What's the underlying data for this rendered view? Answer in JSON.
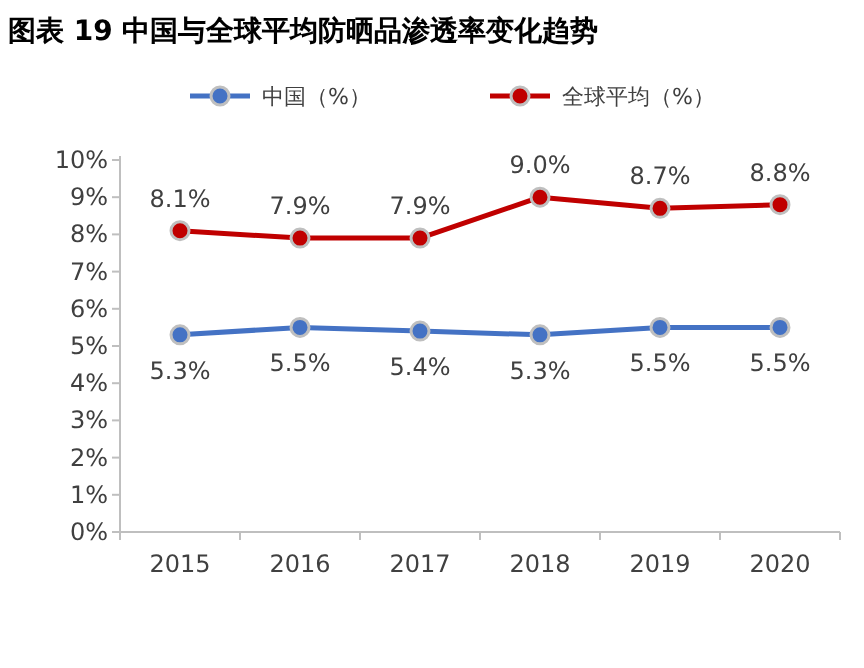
{
  "chart_data": {
    "type": "line",
    "title": "图表 19 中国与全球平均防晒品渗透率变化趋势",
    "categories": [
      "2015",
      "2016",
      "2017",
      "2018",
      "2019",
      "2020"
    ],
    "series": [
      {
        "name": "中国（%）",
        "color": "#4472c4",
        "values": [
          5.3,
          5.5,
          5.4,
          5.3,
          5.5,
          5.5
        ],
        "value_labels": [
          "5.3%",
          "5.5%",
          "5.4%",
          "5.3%",
          "5.5%",
          "5.5%"
        ]
      },
      {
        "name": "全球平均（%）",
        "color": "#c00000",
        "values": [
          8.1,
          7.9,
          7.9,
          9.0,
          8.7,
          8.8
        ],
        "value_labels": [
          "8.1%",
          "7.9%",
          "7.9%",
          "9.0%",
          "8.7%",
          "8.8%"
        ]
      }
    ],
    "ylim": [
      0,
      10
    ],
    "yticks": [
      {
        "value": 0,
        "label": "0%"
      },
      {
        "value": 1,
        "label": "1%"
      },
      {
        "value": 2,
        "label": "2%"
      },
      {
        "value": 3,
        "label": "3%"
      },
      {
        "value": 4,
        "label": "4%"
      },
      {
        "value": 5,
        "label": "5%"
      },
      {
        "value": 6,
        "label": "6%"
      },
      {
        "value": 7,
        "label": "7%"
      },
      {
        "value": 8,
        "label": "8%"
      },
      {
        "value": 9,
        "label": "9%"
      },
      {
        "value": 10,
        "label": "10%"
      }
    ],
    "grid": false,
    "legend": "top",
    "marker": "circle",
    "line_style": "solid"
  }
}
